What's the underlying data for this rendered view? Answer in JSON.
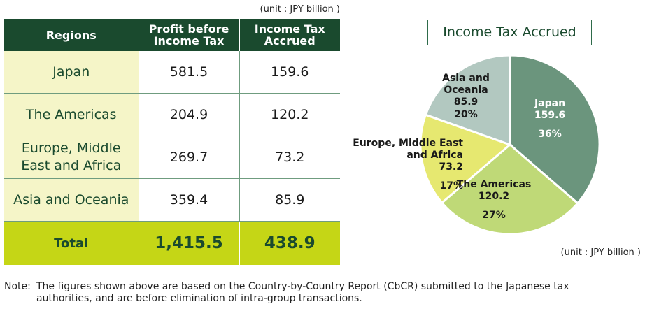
{
  "table": {
    "unit": "(unit : JPY billion )",
    "headers": [
      "Regions",
      "Profit before Income Tax",
      "Income Tax Accrued"
    ],
    "rows": [
      {
        "region": "Japan",
        "profit": "581.5",
        "tax": "159.6"
      },
      {
        "region": "The Americas",
        "profit": "204.9",
        "tax": "120.2"
      },
      {
        "region": "Europe, Middle East and Africa",
        "profit": "269.7",
        "tax": "73.2"
      },
      {
        "region": "Asia and Oceania",
        "profit": "359.4",
        "tax": "85.9"
      }
    ],
    "total": {
      "label": "Total",
      "profit": "1,415.5",
      "tax": "438.9"
    }
  },
  "chart_data": {
    "type": "pie",
    "title": "Income Tax Accrued",
    "unit": "(unit : JPY billion )",
    "slices": [
      {
        "label": "Japan",
        "value": 159.6,
        "percent": "36%",
        "color": "#6b957d",
        "text_color": "#ffffff"
      },
      {
        "label": "The Americas",
        "value": 120.2,
        "percent": "27%",
        "color": "#bfd977",
        "text_color": "#1a1a1a"
      },
      {
        "label": "Europe, Middle East and Africa",
        "value": 73.2,
        "percent": "17%",
        "color": "#e6e870",
        "text_color": "#1a1a1a"
      },
      {
        "label": "Asia and Oceania",
        "value": 85.9,
        "percent": "20%",
        "color": "#b2c8c0",
        "text_color": "#1a1a1a"
      }
    ]
  },
  "note": {
    "label": "Note:",
    "text": "The figures shown above are based on the Country-by-Country Report (CbCR) submitted to the Japanese tax authorities, and are before elimination of intra-group transactions."
  },
  "colors": {
    "header_bg": "#1a4a2e",
    "region_bg": "#f5f5c8",
    "total_bg": "#c5d616"
  }
}
